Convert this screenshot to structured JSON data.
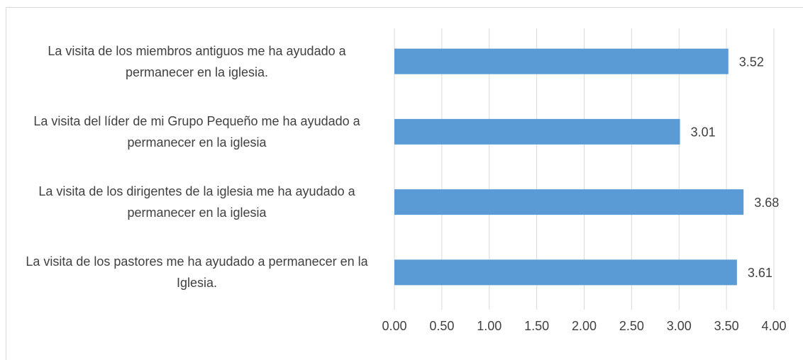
{
  "chart_data": {
    "type": "bar",
    "orientation": "horizontal",
    "categories": [
      "La visita de los miembros antiguos me ha ayudado a permanecer en la iglesia.",
      "La visita del líder de mi Grupo Pequeño me ha ayudado a permanecer en la iglesia",
      "La visita de los dirigentes de la iglesia me ha ayudado a permanecer en la iglesia",
      "La visita de los pastores me ha ayudado a permanecer en la Iglesia."
    ],
    "values": [
      3.52,
      3.01,
      3.68,
      3.61
    ],
    "color": "#5b9bd5",
    "xlim": [
      0,
      4
    ],
    "xticks": [
      {
        "value": 0,
        "label": "0.00"
      },
      {
        "value": 0.5,
        "label": "0.50"
      },
      {
        "value": 1,
        "label": "1.00"
      },
      {
        "value": 1.5,
        "label": "1.50"
      },
      {
        "value": 2,
        "label": "2.00"
      },
      {
        "value": 2.5,
        "label": "2.50"
      },
      {
        "value": 3,
        "label": "3.00"
      },
      {
        "value": 3.5,
        "label": "3.50"
      },
      {
        "value": 4,
        "label": "4.00"
      }
    ],
    "grid": true
  }
}
